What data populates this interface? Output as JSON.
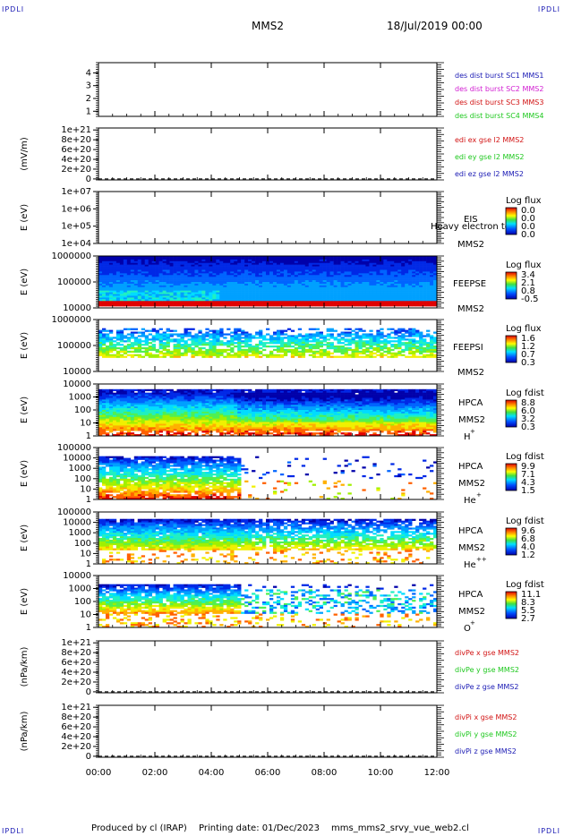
{
  "header": {
    "corner_left_top": "IPDLI",
    "corner_right_top": "IPDLI",
    "corner_left_bottom": "IPDLI",
    "corner_right_bottom": "IPDLI",
    "spacecraft": "MMS2",
    "date": "18/Jul/2019 00:00"
  },
  "footer": {
    "produced_by": "Produced by cl (IRAP)",
    "printing_date": "Printing date: 01/Dec/2023",
    "file": "mms_mms2_srvy_vue_web2.cl"
  },
  "colors": {
    "mms1": "#1a1ab4",
    "mms2": "#d21ed2",
    "mms3": "#d21414",
    "mms4": "#1ec81e",
    "x": "#d21414",
    "y": "#1ec81e",
    "z": "#1a1ab4"
  },
  "chart_data": [
    {
      "type": "line",
      "id": "panel1",
      "ylabel": "",
      "yticks": [
        "1",
        "2",
        "3",
        "4"
      ],
      "legend": [
        {
          "text": "des dist burst SC1 MMS1",
          "color": "#1a1ab4"
        },
        {
          "text": "des dist burst SC2 MMS2",
          "color": "#d21ed2"
        },
        {
          "text": "des dist burst SC3 MMS3",
          "color": "#d21414"
        },
        {
          "text": "des dist burst SC4 MMS4",
          "color": "#1ec81e"
        }
      ]
    },
    {
      "type": "line",
      "id": "panel2",
      "ylabel": "(mV/m)",
      "yticks": [
        "0",
        "2e+20",
        "4e+20",
        "6e+20",
        "8e+20",
        "1e+21"
      ],
      "legend": [
        {
          "text": "edi ex gse l2 MMS2",
          "color": "#d21414"
        },
        {
          "text": "edi ey gse l2 MMS2",
          "color": "#1ec81e"
        },
        {
          "text": "edi ez gse l2 MMS2",
          "color": "#1a1ab4"
        }
      ]
    },
    {
      "type": "heatmap",
      "id": "panel3",
      "ylabel": "E (eV)",
      "yticks": [
        "1e+04",
        "1e+05",
        "1e+06",
        "1e+07"
      ],
      "right_labels": [
        "EIS",
        "Heavy electron to",
        "MMS2"
      ],
      "colorbar_title": "Log flux",
      "colorbar_values": [
        "0.0",
        "0.0",
        "0.0",
        "0.0"
      ]
    },
    {
      "type": "heatmap",
      "id": "panel4",
      "ylabel": "E (eV)",
      "yticks": [
        "10000",
        "100000",
        "1000000"
      ],
      "right_labels": [
        "FEEPSE",
        "MMS2"
      ],
      "colorbar_title": "Log flux",
      "colorbar_values": [
        "3.4",
        "2.1",
        "0.8",
        "-0.5"
      ]
    },
    {
      "type": "heatmap",
      "id": "panel5",
      "ylabel": "E (eV)",
      "yticks": [
        "10000",
        "100000",
        "1000000"
      ],
      "right_labels": [
        "FEEPSI",
        "MMS2"
      ],
      "colorbar_title": "Log flux",
      "colorbar_values": [
        "1.6",
        "1.2",
        "0.7",
        "0.3"
      ]
    },
    {
      "type": "heatmap",
      "id": "panel6",
      "ylabel": "E (eV)",
      "yticks": [
        "1",
        "10",
        "100",
        "1000",
        "10000"
      ],
      "right_labels": [
        "HPCA",
        "MMS2",
        "H"
      ],
      "right_sup": "+",
      "colorbar_title": "Log fdist",
      "colorbar_values": [
        "8.8",
        "6.0",
        "3.2",
        "0.3"
      ]
    },
    {
      "type": "heatmap",
      "id": "panel7",
      "ylabel": "E (eV)",
      "yticks": [
        "1",
        "10",
        "100",
        "1000",
        "10000",
        "100000"
      ],
      "right_labels": [
        "HPCA",
        "MMS2",
        "He"
      ],
      "right_sup": "+",
      "colorbar_title": "Log fdist",
      "colorbar_values": [
        "9.9",
        "7.1",
        "4.3",
        "1.5"
      ]
    },
    {
      "type": "heatmap",
      "id": "panel8",
      "ylabel": "E (eV)",
      "yticks": [
        "1",
        "10",
        "100",
        "1000",
        "10000",
        "100000"
      ],
      "right_labels": [
        "HPCA",
        "MMS2",
        "He"
      ],
      "right_sup": "++",
      "colorbar_title": "Log fdist",
      "colorbar_values": [
        "9.6",
        "6.8",
        "4.0",
        "1.2"
      ]
    },
    {
      "type": "heatmap",
      "id": "panel9",
      "ylabel": "E (eV)",
      "yticks": [
        "1",
        "10",
        "100",
        "1000",
        "10000"
      ],
      "right_labels": [
        "HPCA",
        "MMS2",
        "O"
      ],
      "right_sup": "+",
      "colorbar_title": "Log fdist",
      "colorbar_values": [
        "11.1",
        "8.3",
        "5.5",
        "2.7"
      ]
    },
    {
      "type": "line",
      "id": "panel10",
      "ylabel": "(nPa/km)",
      "yticks": [
        "0",
        "2e+20",
        "4e+20",
        "6e+20",
        "8e+20",
        "1e+21"
      ],
      "legend": [
        {
          "text": "divPe x gse MMS2",
          "color": "#d21414"
        },
        {
          "text": "divPe y gse MMS2",
          "color": "#1ec81e"
        },
        {
          "text": "divPe z gse MMS2",
          "color": "#1a1ab4"
        }
      ]
    },
    {
      "type": "line",
      "id": "panel11",
      "ylabel": "(nPa/km)",
      "yticks": [
        "0",
        "2e+20",
        "4e+20",
        "6e+20",
        "8e+20",
        "1e+21"
      ],
      "legend": [
        {
          "text": "divPi x gse MMS2",
          "color": "#d21414"
        },
        {
          "text": "divPi y gse MMS2",
          "color": "#1ec81e"
        },
        {
          "text": "divPi z gse MMS2",
          "color": "#1a1ab4"
        }
      ]
    }
  ],
  "xaxis": {
    "ticks": [
      "00:00",
      "02:00",
      "04:00",
      "06:00",
      "08:00",
      "10:00",
      "12:00"
    ]
  }
}
